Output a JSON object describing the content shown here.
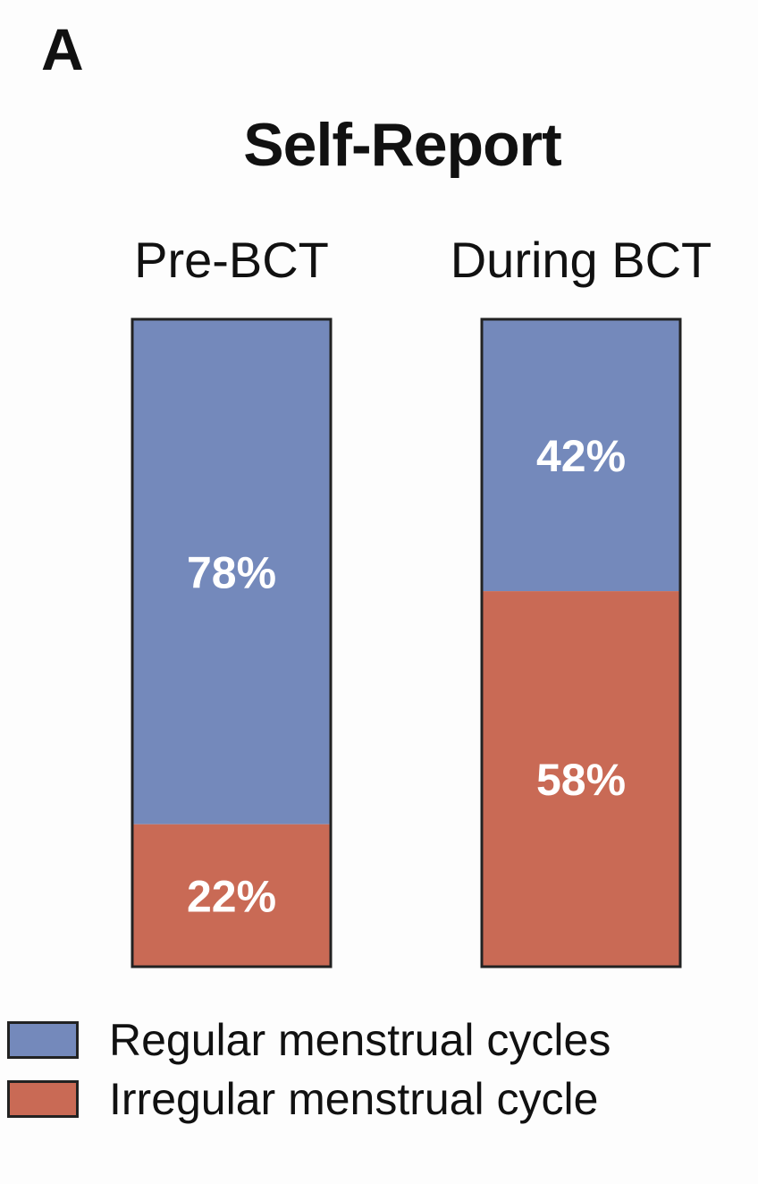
{
  "panel_letter": "A",
  "colors": {
    "regular": "#7489bb",
    "irregular": "#c96a55",
    "outline": "#222222",
    "label_text": "#ffffff"
  },
  "chart_data": {
    "type": "bar",
    "stacked": true,
    "normalized": true,
    "title": "Self-Report",
    "xlabel": "",
    "ylabel": "",
    "ylim": [
      0,
      100
    ],
    "grid": false,
    "legend_position": "bottom-left",
    "categories": [
      "Pre-BCT",
      "During BCT"
    ],
    "series": [
      {
        "name": "Regular menstrual cycles",
        "values": [
          78,
          42
        ],
        "labels": [
          "78%",
          "42%"
        ]
      },
      {
        "name": "Irregular menstrual cycle",
        "values": [
          22,
          58
        ],
        "labels": [
          "22%",
          "58%"
        ]
      }
    ]
  }
}
